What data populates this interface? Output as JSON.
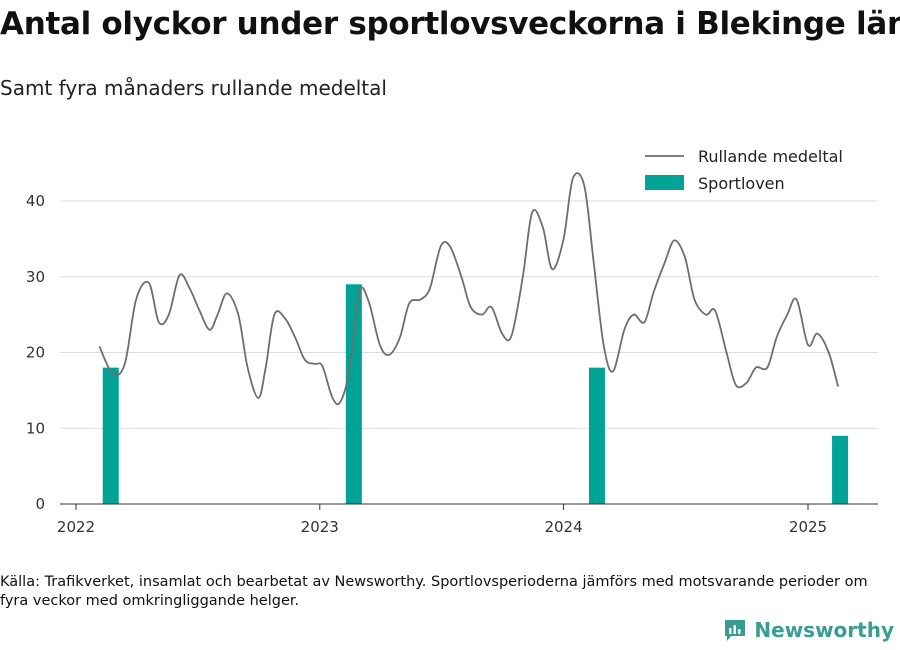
{
  "header": {
    "title": "Antal olyckor under sportlovsveckorna i Blekinge län",
    "subtitle": "Samt fyra månaders rullande medeltal"
  },
  "footer": {
    "source": "Källa: Trafikverket, insamlat och bearbetat av Newsworthy. Sportlovsperioderna jämförs med motsvarande perioder om fyra veckor med omkringliggande helger.",
    "logo_text": "Newsworthy"
  },
  "colors": {
    "bar": "#00a396",
    "line": "#6e6e6e",
    "grid": "#dddddd",
    "logo": "#3a9d92"
  },
  "chart_data": {
    "type": "bar+line",
    "title": "Antal olyckor under sportlovsveckorna i Blekinge län",
    "subtitle": "Samt fyra månaders rullande medeltal",
    "x_ticks": [
      "2022",
      "2023",
      "2024",
      "2025"
    ],
    "y_ticks": [
      0,
      10,
      20,
      30,
      40
    ],
    "xlim": [
      "2022-01-01",
      "2025-04-01"
    ],
    "ylim": [
      0,
      45
    ],
    "grid": true,
    "legend_position": "top-right",
    "legend": [
      "Rullande medeltal",
      "Sportloven"
    ],
    "series": [
      {
        "name": "Sportloven",
        "kind": "bar",
        "color": "#00a396",
        "x": [
          "2022-02-22",
          "2023-02-21",
          "2024-02-20",
          "2025-02-18"
        ],
        "values": [
          18,
          29,
          18,
          9
        ]
      },
      {
        "name": "Rullande medeltal",
        "kind": "line",
        "color": "#6e6e6e",
        "x": [
          "2022-02-05",
          "2022-02-25",
          "2022-03-15",
          "2022-04-01",
          "2022-04-20",
          "2022-05-05",
          "2022-05-20",
          "2022-06-05",
          "2022-06-20",
          "2022-07-05",
          "2022-07-20",
          "2022-08-01",
          "2022-08-15",
          "2022-09-01",
          "2022-09-15",
          "2022-10-01",
          "2022-10-12",
          "2022-10-25",
          "2022-11-10",
          "2022-11-25",
          "2022-12-10",
          "2022-12-25",
          "2023-01-05",
          "2023-01-20",
          "2023-02-01",
          "2023-02-15",
          "2023-03-01",
          "2023-03-15",
          "2023-04-01",
          "2023-04-15",
          "2023-05-01",
          "2023-05-15",
          "2023-06-01",
          "2023-06-15",
          "2023-07-01",
          "2023-07-15",
          "2023-08-01",
          "2023-08-15",
          "2023-09-01",
          "2023-09-15",
          "2023-10-01",
          "2023-10-15",
          "2023-11-01",
          "2023-11-15",
          "2023-12-01",
          "2023-12-15",
          "2024-01-01",
          "2024-01-15",
          "2024-02-01",
          "2024-02-15",
          "2024-03-01",
          "2024-03-15",
          "2024-04-01",
          "2024-04-15",
          "2024-05-01",
          "2024-05-15",
          "2024-06-01",
          "2024-06-15",
          "2024-07-01",
          "2024-07-15",
          "2024-08-01",
          "2024-08-15",
          "2024-09-01",
          "2024-09-15",
          "2024-10-01",
          "2024-10-15",
          "2024-11-01",
          "2024-11-15",
          "2024-12-01",
          "2024-12-15",
          "2025-01-01",
          "2025-01-15",
          "2025-02-01",
          "2025-02-15"
        ],
        "values": [
          20.8,
          17.2,
          18.5,
          27,
          29.2,
          24,
          25,
          30.2,
          28.5,
          25.5,
          23,
          25,
          27.8,
          25,
          18,
          14,
          18,
          25,
          24.5,
          22,
          19,
          18.5,
          18.2,
          14,
          13.5,
          18,
          28,
          26.8,
          21,
          19.7,
          22,
          26.5,
          27,
          28.5,
          34,
          34,
          30,
          26,
          25,
          26,
          22.5,
          22.2,
          30,
          38.5,
          36.5,
          31,
          35,
          43,
          42,
          32,
          21,
          17.5,
          23,
          25,
          24,
          28,
          32,
          34.8,
          32.5,
          27,
          25,
          25.5,
          20,
          15.7,
          16,
          18,
          18,
          22,
          25,
          27,
          21,
          22.5,
          20,
          15.5
        ]
      }
    ]
  }
}
